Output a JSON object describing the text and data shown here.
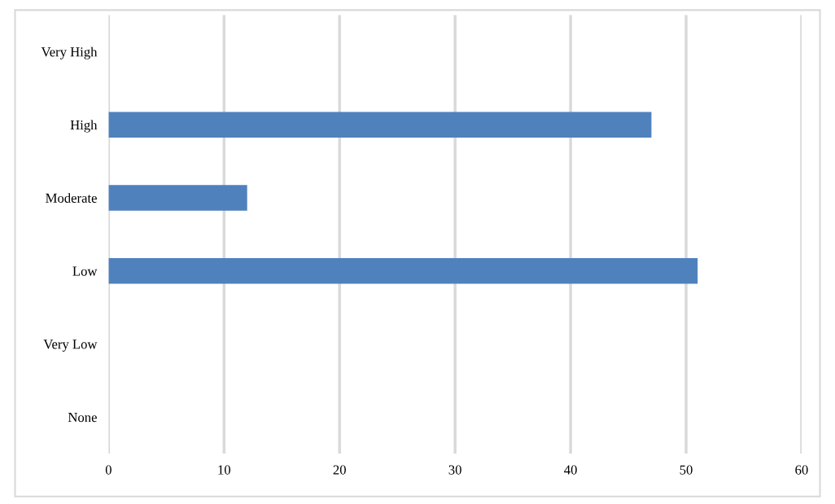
{
  "chart_data": {
    "type": "bar",
    "orientation": "horizontal",
    "categories": [
      "Very High",
      "High",
      "Moderate",
      "Low",
      "Very Low",
      "None"
    ],
    "values": [
      0,
      47,
      12,
      51,
      0,
      0
    ],
    "color": "#4f81bd",
    "xlim": [
      0,
      60
    ],
    "xticks": [
      0,
      10,
      20,
      30,
      40,
      50,
      60
    ],
    "grid": "x"
  }
}
